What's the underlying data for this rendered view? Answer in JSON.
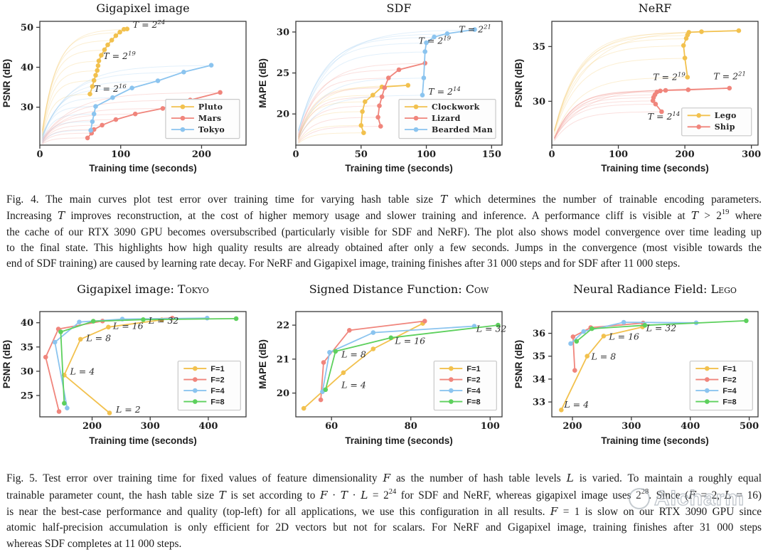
{
  "colors": {
    "yellow": "#F2C14E",
    "red": "#F0857C",
    "blue": "#8BC4EF",
    "green": "#5DD05D",
    "plot_border": "#3a3a3a",
    "legend_border": "#c9c9c9",
    "legend_bg": "#fdfdfd",
    "faint_opacity": 0.25
  },
  "chart_data": [
    {
      "type": "line",
      "row": 1,
      "title": "Gigapixel image",
      "title_caps": "",
      "xlabel": "Training time (seconds)",
      "ylabel": "PSNR (dB)",
      "xlim": [
        0,
        255
      ],
      "ylim": [
        20.5,
        51.5
      ],
      "xticks": [
        0,
        100,
        200
      ],
      "yticks": [
        30,
        40,
        50
      ],
      "convergence": true,
      "series": [
        {
          "name": "Pluto",
          "color": "yellow",
          "points": [
            [
              62,
              33.3
            ],
            [
              65,
              35.2
            ],
            [
              67,
              36.7
            ],
            [
              69,
              38.0
            ],
            [
              71,
              39.2
            ],
            [
              72,
              40.4
            ],
            [
              73,
              41.6
            ],
            [
              76,
              43.0
            ],
            [
              80,
              44.4
            ],
            [
              84,
              45.6
            ],
            [
              89,
              46.8
            ],
            [
              94,
              47.9
            ],
            [
              99,
              48.8
            ],
            [
              104,
              49.5
            ],
            [
              108,
              49.6
            ]
          ]
        },
        {
          "name": "Mars",
          "color": "red",
          "points": [
            [
              59,
              22.3
            ],
            [
              64,
              23.5
            ],
            [
              67,
              24.4
            ],
            [
              77,
              25.5
            ],
            [
              94,
              26.9
            ],
            [
              118,
              28.3
            ],
            [
              152,
              29.7
            ],
            [
              186,
              31.8
            ],
            [
              223,
              33.7
            ]
          ]
        },
        {
          "name": "Tokyo",
          "color": "blue",
          "points": [
            [
              63,
              24.2
            ],
            [
              65,
              26.4
            ],
            [
              67,
              28.3
            ],
            [
              69,
              30.2
            ],
            [
              90,
              32.4
            ],
            [
              114,
              34.8
            ],
            [
              146,
              36.6
            ],
            [
              178,
              38.8
            ],
            [
              212,
              40.5
            ]
          ]
        }
      ],
      "legend": {
        "fx": 0.61,
        "fy": 0.63,
        "w": 104,
        "caps": true
      },
      "annotations": [
        {
          "text": "T = 2^24",
          "x": 115,
          "y": 49.9
        },
        {
          "text": "T = 2^19",
          "x": 78.5,
          "y": 42.1
        },
        {
          "text": "T = 2^16",
          "x": 67,
          "y": 33.9
        }
      ]
    },
    {
      "type": "line",
      "row": 1,
      "title": "SDF",
      "title_caps": "",
      "xlabel": "Training time (seconds)",
      "ylabel": "MAPE (dB)",
      "xlim": [
        0,
        158
      ],
      "ylim": [
        16.2,
        31.3
      ],
      "xticks": [
        0,
        50,
        100,
        150
      ],
      "yticks": [
        20,
        25,
        30
      ],
      "convergence": true,
      "series": [
        {
          "name": "Clockwork",
          "color": "yellow",
          "points": [
            [
              52,
              17.7
            ],
            [
              50,
              18.6
            ],
            [
              51,
              20.3
            ],
            [
              53,
              21.5
            ],
            [
              59,
              22.3
            ],
            [
              66,
              23.3
            ],
            [
              86,
              23.5
            ]
          ]
        },
        {
          "name": "Lizard",
          "color": "red",
          "points": [
            [
              65,
              18.5
            ],
            [
              63,
              19.6
            ],
            [
              64,
              21.0
            ],
            [
              66,
              22.1
            ],
            [
              68,
              23.2
            ],
            [
              71,
              24.4
            ],
            [
              79,
              25.4
            ],
            [
              99,
              26.2
            ]
          ]
        },
        {
          "name": "Bearded Man",
          "color": "blue",
          "points": [
            [
              97,
              22.3
            ],
            [
              98,
              24.4
            ],
            [
              99,
              27.6
            ],
            [
              100,
              28.7
            ],
            [
              106,
              29.4
            ],
            [
              116,
              29.8
            ],
            [
              137,
              30.3
            ]
          ]
        }
      ],
      "legend": {
        "fx": 0.5,
        "fy": 0.63,
        "w": 136,
        "caps": true
      },
      "annotations": [
        {
          "text": "T = 2^21",
          "x": 125,
          "y": 29.95
        },
        {
          "text": "T = 2^19",
          "x": 94,
          "y": 28.55
        },
        {
          "text": "T = 2^14",
          "x": 101.5,
          "y": 22.35
        }
      ]
    },
    {
      "type": "line",
      "row": 1,
      "title": "NeRF",
      "title_caps": "",
      "xlabel": "Training time (seconds)",
      "ylabel": "PSNR (dB)",
      "xlim": [
        0,
        310
      ],
      "ylim": [
        26.0,
        37.3
      ],
      "xticks": [
        0,
        100,
        200,
        300
      ],
      "yticks": [
        30,
        35
      ],
      "convergence": true,
      "series": [
        {
          "name": "Lego",
          "color": "yellow",
          "points": [
            [
              204,
              32.2
            ],
            [
              200,
              33.95
            ],
            [
              198,
              35.1
            ],
            [
              202,
              35.75
            ],
            [
              204,
              36.05
            ],
            [
              206,
              36.3
            ],
            [
              225,
              36.35
            ],
            [
              281,
              36.45
            ]
          ]
        },
        {
          "name": "Ship",
          "color": "red",
          "points": [
            [
              165,
              29.05
            ],
            [
              156,
              29.75
            ],
            [
              152,
              30.05
            ],
            [
              153,
              30.35
            ],
            [
              155,
              30.6
            ],
            [
              158,
              30.85
            ],
            [
              163,
              30.95
            ],
            [
              171,
              31.0
            ],
            [
              205,
              31.05
            ],
            [
              267,
              31.2
            ]
          ]
        }
      ],
      "legend": {
        "fx": 0.63,
        "fy": 0.7,
        "w": 98,
        "caps": true
      },
      "annotations": [
        {
          "text": "T = 2^19",
          "x": 152,
          "y": 31.95
        },
        {
          "text": "T = 2^21",
          "x": 243,
          "y": 32.0
        },
        {
          "text": "T = 2^14",
          "x": 144,
          "y": 28.35
        }
      ]
    },
    {
      "type": "line",
      "row": 2,
      "title": "Gigapixel image: ",
      "title_caps": "Tokyo",
      "xlabel": "Training time (seconds)",
      "ylabel": "PSNR (dB)",
      "xlim": [
        110,
        465
      ],
      "ylim": [
        20.6,
        42.3
      ],
      "xticks": [
        200,
        300,
        400
      ],
      "yticks": [
        25,
        30,
        35,
        40
      ],
      "convergence": false,
      "series": [
        {
          "name": "F=1",
          "color": "yellow",
          "points": [
            [
              230,
              21.4
            ],
            [
              152,
              29.2
            ],
            [
              180,
              36.6
            ],
            [
              228,
              39.1
            ],
            [
              320,
              40.6
            ]
          ]
        },
        {
          "name": "F=2",
          "color": "red",
          "points": [
            [
              143,
              21.7
            ],
            [
              120,
              32.9
            ],
            [
              142,
              38.7
            ],
            [
              218,
              40.35
            ],
            [
              338,
              40.95
            ]
          ]
        },
        {
          "name": "F=4",
          "color": "blue",
          "points": [
            [
              157,
              22.4
            ],
            [
              136,
              36.0
            ],
            [
              178,
              40.15
            ],
            [
              252,
              40.75
            ],
            [
              398,
              40.95
            ]
          ]
        },
        {
          "name": "F=8",
          "color": "green",
          "points": [
            [
              152,
              23.4
            ],
            [
              146,
              38.1
            ],
            [
              202,
              40.3
            ],
            [
              288,
              40.65
            ],
            [
              448,
              40.85
            ]
          ]
        }
      ],
      "legend": {
        "fx": 0.67,
        "fy": 0.47,
        "w": 88,
        "caps": false
      },
      "annotations": [
        {
          "text": "L = 2",
          "x": 241,
          "y": 21.5
        },
        {
          "text": "L = 4",
          "x": 162,
          "y": 29.3
        },
        {
          "text": "L = 8",
          "x": 190,
          "y": 36.2
        },
        {
          "text": "L = 16",
          "x": 236,
          "y": 38.7
        },
        {
          "text": "L = 32",
          "x": 297,
          "y": 39.8
        }
      ]
    },
    {
      "type": "line",
      "row": 2,
      "title": "Signed Distance Function: ",
      "title_caps": "Cow",
      "xlabel": "Training time (seconds)",
      "ylabel": "MAPE (dB)",
      "xlim": [
        51,
        103
      ],
      "ylim": [
        19.3,
        22.4
      ],
      "xticks": [
        60,
        80,
        100
      ],
      "yticks": [
        20,
        21,
        22
      ],
      "convergence": false,
      "series": [
        {
          "name": "F=1",
          "color": "yellow",
          "points": [
            [
              53,
              19.55
            ],
            [
              63,
              20.6
            ],
            [
              70.5,
              21.3
            ],
            [
              83,
              22.05
            ]
          ]
        },
        {
          "name": "F=2",
          "color": "red",
          "points": [
            [
              57.3,
              19.8
            ],
            [
              58,
              20.9
            ],
            [
              64.5,
              21.85
            ],
            [
              83.5,
              22.12
            ]
          ]
        },
        {
          "name": "F=4",
          "color": "blue",
          "points": [
            [
              57.7,
              20.04
            ],
            [
              59.5,
              21.2
            ],
            [
              70.5,
              21.78
            ],
            [
              96,
              21.97
            ]
          ]
        },
        {
          "name": "F=8",
          "color": "green",
          "points": [
            [
              58.5,
              20.1
            ],
            [
              61,
              21.23
            ],
            [
              75,
              21.63
            ],
            [
              102,
              22.0
            ]
          ]
        }
      ],
      "legend": {
        "fx": 0.67,
        "fy": 0.47,
        "w": 88,
        "caps": false
      },
      "annotations": [
        {
          "text": "L = 4",
          "x": 62.5,
          "y": 20.15
        },
        {
          "text": "L = 8",
          "x": 62.5,
          "y": 21.05
        },
        {
          "text": "L = 16",
          "x": 76,
          "y": 21.45
        },
        {
          "text": "L = 32",
          "x": 96.5,
          "y": 21.8
        }
      ]
    },
    {
      "type": "line",
      "row": 2,
      "title": "Neural Radiance Field: ",
      "title_caps": "Lego",
      "xlabel": "Training time (seconds)",
      "ylabel": "PSNR (dB)",
      "xlim": [
        165,
        515
      ],
      "ylim": [
        32.35,
        36.95
      ],
      "xticks": [
        200,
        300,
        400,
        500
      ],
      "yticks": [
        33,
        34,
        35,
        36
      ],
      "convergence": false,
      "series": [
        {
          "name": "F=1",
          "color": "yellow",
          "points": [
            [
              181,
              32.65
            ],
            [
              225,
              35.0
            ],
            [
              253,
              35.88
            ],
            [
              319,
              36.28
            ]
          ]
        },
        {
          "name": "F=2",
          "color": "red",
          "points": [
            [
              204,
              34.38
            ],
            [
              201,
              35.85
            ],
            [
              231,
              36.25
            ],
            [
              320,
              36.45
            ]
          ]
        },
        {
          "name": "F=4",
          "color": "blue",
          "points": [
            [
              197,
              35.55
            ],
            [
              219,
              36.08
            ],
            [
              287,
              36.48
            ],
            [
              410,
              36.46
            ]
          ]
        },
        {
          "name": "F=8",
          "color": "green",
          "points": [
            [
              207,
              35.65
            ],
            [
              233,
              36.2
            ],
            [
              323,
              36.35
            ],
            [
              495,
              36.55
            ]
          ]
        }
      ],
      "legend": {
        "fx": 0.67,
        "fy": 0.47,
        "w": 88,
        "caps": false
      },
      "annotations": [
        {
          "text": "L = 4",
          "x": 186,
          "y": 32.75
        },
        {
          "text": "L = 8",
          "x": 232,
          "y": 34.85
        },
        {
          "text": "L = 16",
          "x": 262,
          "y": 35.72
        },
        {
          "text": "L = 32",
          "x": 325,
          "y": 36.1
        }
      ]
    }
  ],
  "figure4": {
    "caption_lines": [
      "Fig. 4.  The main curves plot test error over training time for varying hash table size T which determines the number of trainable encoding parameters.",
      "Increasing T improves reconstruction, at the cost of higher memory usage and slower training and inference. A performance cliff is visible at T > 2^19 where",
      "the cache of our RTX 3090 GPU becomes oversubscribed (particularly visible for SDF and NeRF). The plot also shows model convergence over time leading up",
      "to the final state. This highlights how high quality results are already obtained after only a few seconds. Jumps in the convergence (most visible towards the",
      "end of SDF training) are caused by learning rate decay. For NeRF and Gigapixel image, training finishes after 31 000 steps and for SDF after 11 000 steps."
    ]
  },
  "figure5": {
    "caption_lines": [
      "Fig. 5.  Test error over training time for fixed values of feature dimensionality F as the number of hash table levels L is varied. To maintain a roughly equal",
      "trainable parameter count, the hash table size T is set according to F · T · L = 2^24 for SDF and NeRF, whereas gigapixel image uses 2^28. Since (F = 2, L = 16)",
      "is near the best-case performance and quality (top-left) for all applications, we use this configuration in all results. F = 1 is slow on our RTX 3090 GPU since",
      "atomic half-precision accumulation is only efficient for 2D vectors but not for scalars. For NeRF and Gigapixel image, training finishes after 31 000 steps",
      "whereas SDF completes at 11 000 steps."
    ]
  },
  "watermark": {
    "text": "AIcharm"
  }
}
